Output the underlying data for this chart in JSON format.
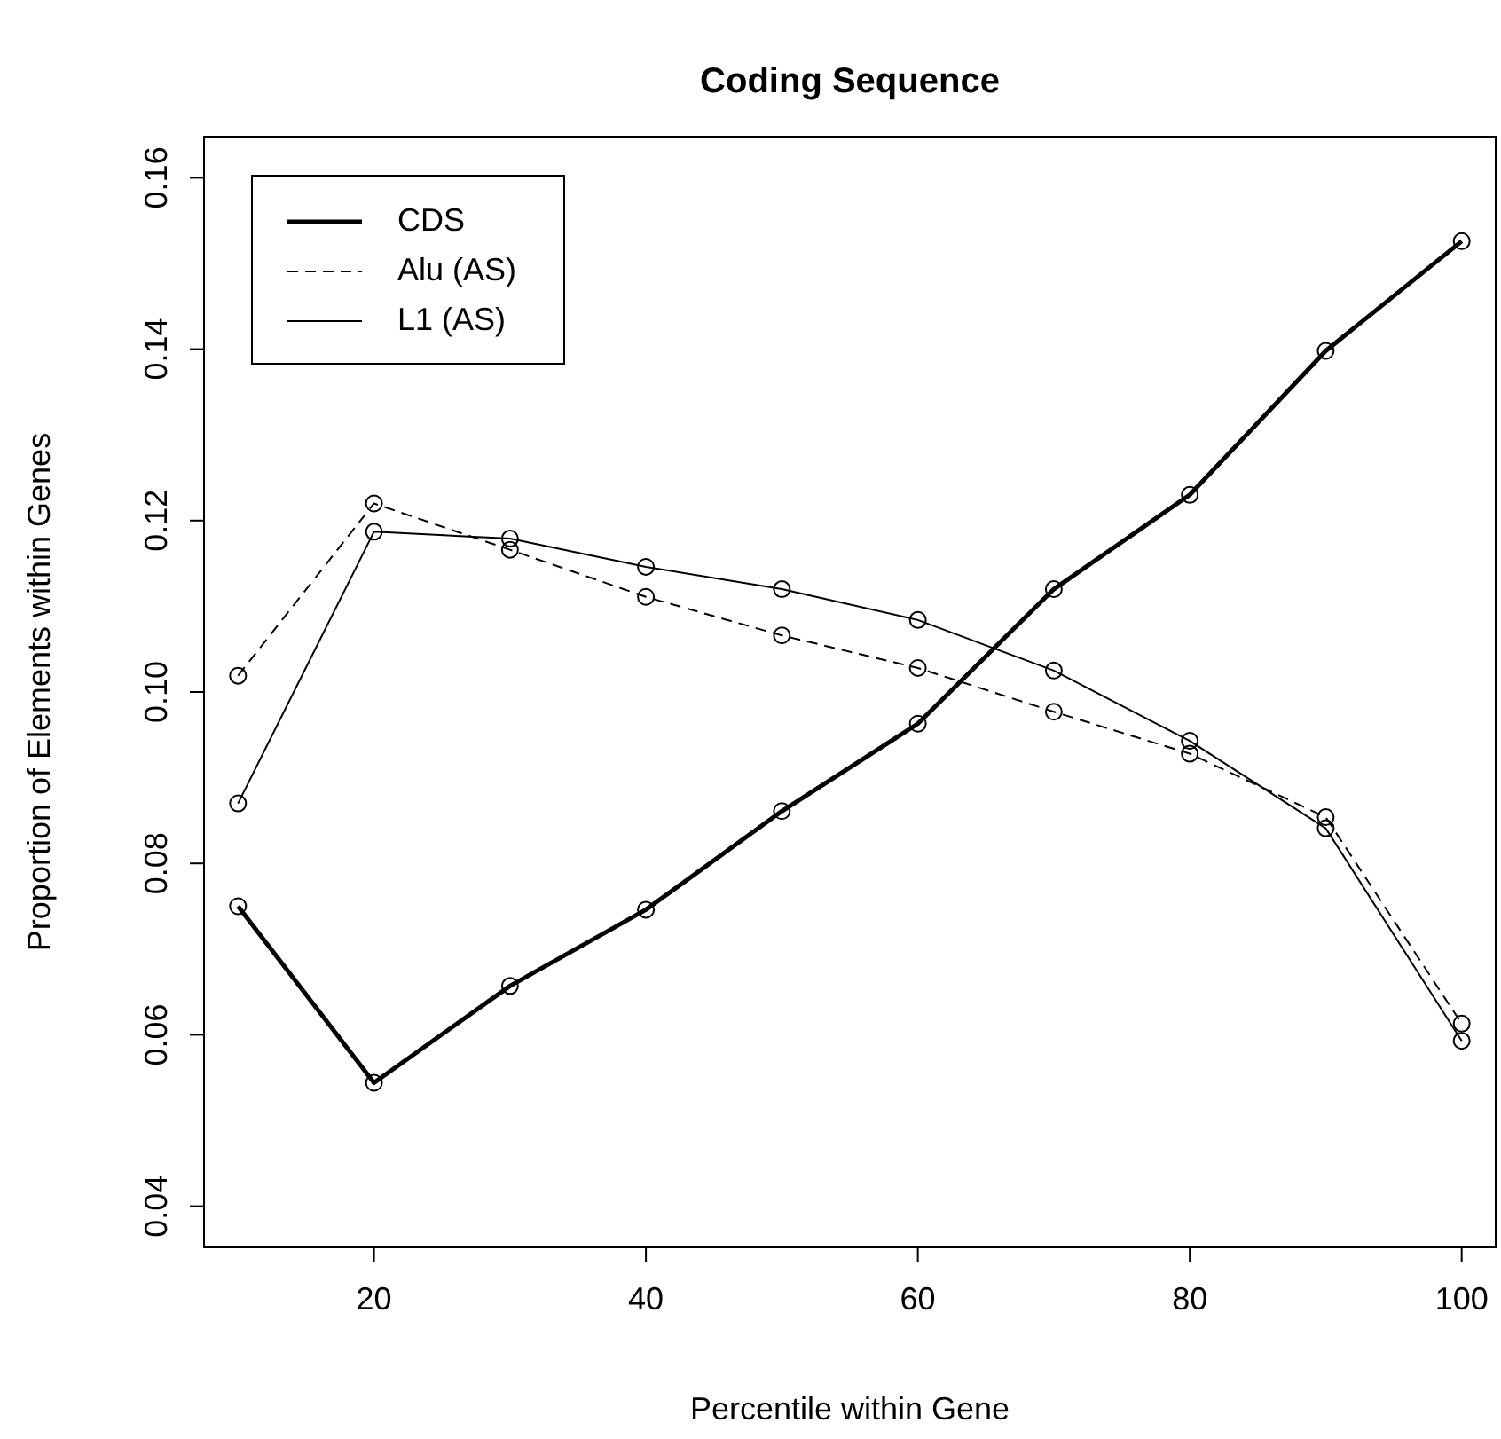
{
  "chart_data": {
    "type": "line",
    "title": "Coding Sequence",
    "xlabel": "Percentile within Gene",
    "ylabel": "Proportion of Elements within Genes",
    "x": [
      10,
      20,
      30,
      40,
      50,
      60,
      70,
      80,
      90,
      100
    ],
    "series": [
      {
        "name": "CDS",
        "color": "#000000",
        "line_style": "solid",
        "values": [
          0.075,
          0.0544,
          0.0657,
          0.0746,
          0.0861,
          0.0963,
          0.112,
          0.123,
          0.1398,
          0.1526
        ]
      },
      {
        "name": "Alu (AS)",
        "color": "#000000",
        "line_style": "dashed",
        "values": [
          0.1019,
          0.122,
          0.1166,
          0.1111,
          0.1066,
          0.1028,
          0.0977,
          0.0928,
          0.0854,
          0.0613
        ]
      },
      {
        "name": "L1 (AS)",
        "color": "#000000",
        "line_style": "solid",
        "values": [
          0.087,
          0.1187,
          0.1179,
          0.1146,
          0.112,
          0.1084,
          0.1025,
          0.0943,
          0.0841,
          0.0593
        ]
      }
    ],
    "xlim": [
      7.5,
      102.5
    ],
    "xticks": [
      20,
      40,
      60,
      80,
      100
    ],
    "ylim": [
      0.0352,
      0.1648
    ],
    "yticks": [
      {
        "value": 0.04,
        "label": "0.04"
      },
      {
        "value": 0.06,
        "label": "0.06"
      },
      {
        "value": 0.08,
        "label": "0.08"
      },
      {
        "value": 0.1,
        "label": "0.10"
      },
      {
        "value": 0.12,
        "label": "0.12"
      },
      {
        "value": 0.14,
        "label": "0.14"
      },
      {
        "value": 0.16,
        "label": "0.16"
      }
    ],
    "marker": "circle",
    "grid": false,
    "legend": "top left"
  }
}
